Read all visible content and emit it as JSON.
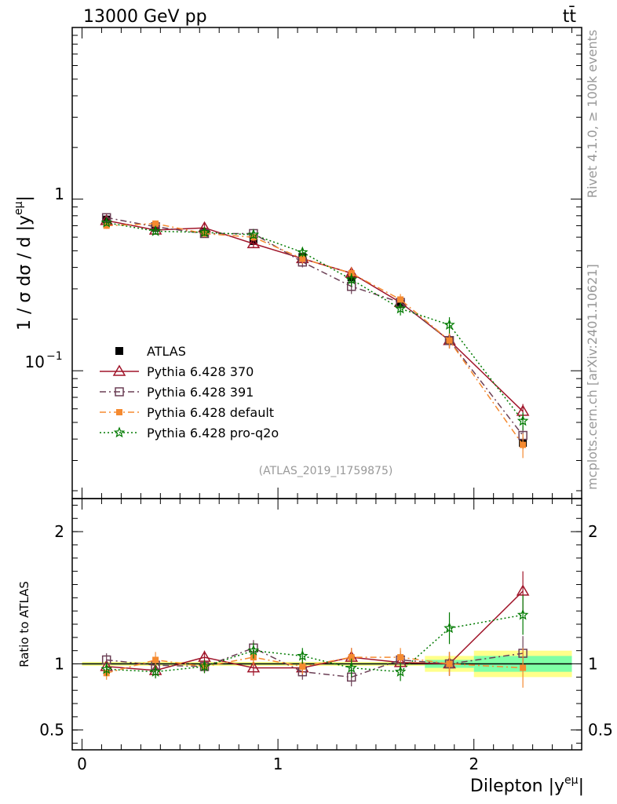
{
  "header": {
    "energy_label": "13000 GeV pp",
    "process_label": "tt̄"
  },
  "side_labels": {
    "rivet": "Rivet 4.1.0, ≥ 100k events",
    "mcplots": "mcplots.cern.ch [arXiv:2401.10621]"
  },
  "analysis_id": "(ATLAS_2019_I1759875)",
  "colors": {
    "atlas": "#000000",
    "p370": "#a0152a",
    "p391": "#6b3f55",
    "pdefault": "#f58a30",
    "pq2o": "#007a00",
    "band_inner": "#7fffa5",
    "band_outer": "#ffff8a"
  },
  "chart_data": [
    {
      "type": "line",
      "panel": "main",
      "yscale": "log",
      "ylabel": "1 / σ dσ / d |y",
      "ylabel_sup": "eμ",
      "ylabel_suffix": "|",
      "xlim": [
        -0.05,
        2.55
      ],
      "ylim": [
        0.018,
        10
      ],
      "y_tick_labels": [
        "1",
        "10",
        "−1"
      ],
      "x": [
        0.125,
        0.375,
        0.625,
        0.875,
        1.125,
        1.375,
        1.625,
        1.875,
        2.25
      ],
      "legend_position": "bottom-left",
      "series": [
        {
          "key": "atlas",
          "name": "ATLAS",
          "values": [
            0.76,
            0.68,
            0.64,
            0.57,
            0.46,
            0.35,
            0.245,
            0.15,
            0.038
          ],
          "errors": [
            0.03,
            0.03,
            0.03,
            0.03,
            0.02,
            0.02,
            0.015,
            0.012,
            0.003
          ]
        },
        {
          "key": "p370",
          "name": "Pythia 6.428 370",
          "values": [
            0.75,
            0.66,
            0.68,
            0.55,
            0.45,
            0.37,
            0.25,
            0.15,
            0.058
          ],
          "errors": [
            0.03,
            0.03,
            0.04,
            0.03,
            0.03,
            0.03,
            0.02,
            0.015,
            0.006
          ]
        },
        {
          "key": "p391",
          "name": "Pythia 6.428 391",
          "values": [
            0.78,
            0.69,
            0.63,
            0.63,
            0.43,
            0.31,
            0.25,
            0.15,
            0.042
          ],
          "errors": [
            0.03,
            0.03,
            0.03,
            0.04,
            0.03,
            0.03,
            0.02,
            0.015,
            0.006
          ]
        },
        {
          "key": "pdefault",
          "name": "Pythia 6.428 default",
          "values": [
            0.7,
            0.72,
            0.63,
            0.6,
            0.45,
            0.37,
            0.26,
            0.15,
            0.037
          ],
          "errors": [
            0.03,
            0.03,
            0.03,
            0.03,
            0.03,
            0.03,
            0.02,
            0.015,
            0.006
          ]
        },
        {
          "key": "pq2o",
          "name": "Pythia 6.428 pro-q2o",
          "values": [
            0.73,
            0.65,
            0.64,
            0.62,
            0.49,
            0.34,
            0.23,
            0.185,
            0.051
          ],
          "errors": [
            0.03,
            0.03,
            0.03,
            0.03,
            0.03,
            0.03,
            0.02,
            0.02,
            0.006
          ]
        }
      ]
    },
    {
      "type": "line",
      "panel": "ratio",
      "ylabel": "Ratio to ATLAS",
      "xlabel": "Dilepton |y",
      "xlabel_sup": "eμ",
      "xlabel_suffix": "|",
      "xlim": [
        -0.05,
        2.55
      ],
      "ylim": [
        0.35,
        2.25
      ],
      "y_ticks": [
        0.5,
        1,
        2
      ],
      "y_tick_labels": [
        "0.5",
        "1",
        "2"
      ],
      "x_ticks": [
        0,
        1,
        2
      ],
      "x_tick_labels": [
        "0",
        "1",
        "2"
      ],
      "x": [
        0.125,
        0.375,
        0.625,
        0.875,
        1.125,
        1.375,
        1.625,
        1.875,
        2.25
      ],
      "bands": [
        {
          "x0": 0.0,
          "x1": 1.75,
          "inner": 0.005,
          "outer": 0.015
        },
        {
          "x0": 1.75,
          "x1": 2.0,
          "inner": 0.03,
          "outer": 0.06
        },
        {
          "x0": 2.0,
          "x1": 2.5,
          "inner": 0.06,
          "outer": 0.1
        }
      ],
      "series": [
        {
          "key": "p370",
          "values": [
            0.98,
            0.95,
            1.05,
            0.97,
            0.97,
            1.05,
            1.01,
            1.0,
            1.55
          ],
          "errors": [
            0.05,
            0.05,
            0.05,
            0.06,
            0.06,
            0.07,
            0.07,
            0.09,
            0.15
          ]
        },
        {
          "key": "p391",
          "values": [
            1.03,
            0.99,
            0.98,
            1.12,
            0.94,
            0.9,
            1.03,
            1.0,
            1.08
          ],
          "errors": [
            0.05,
            0.05,
            0.05,
            0.06,
            0.06,
            0.07,
            0.07,
            0.09,
            0.13
          ]
        },
        {
          "key": "pdefault",
          "values": [
            0.93,
            1.03,
            0.98,
            1.05,
            0.98,
            1.05,
            1.05,
            1.0,
            0.97
          ],
          "errors": [
            0.05,
            0.06,
            0.05,
            0.06,
            0.06,
            0.07,
            0.07,
            0.09,
            0.15
          ]
        },
        {
          "key": "pq2o",
          "values": [
            0.96,
            0.94,
            0.98,
            1.1,
            1.06,
            0.97,
            0.94,
            1.27,
            1.37
          ],
          "errors": [
            0.05,
            0.05,
            0.05,
            0.06,
            0.06,
            0.07,
            0.07,
            0.12,
            0.15
          ]
        }
      ]
    }
  ],
  "legend_order": [
    "atlas",
    "p370",
    "p391",
    "pdefault",
    "pq2o"
  ]
}
